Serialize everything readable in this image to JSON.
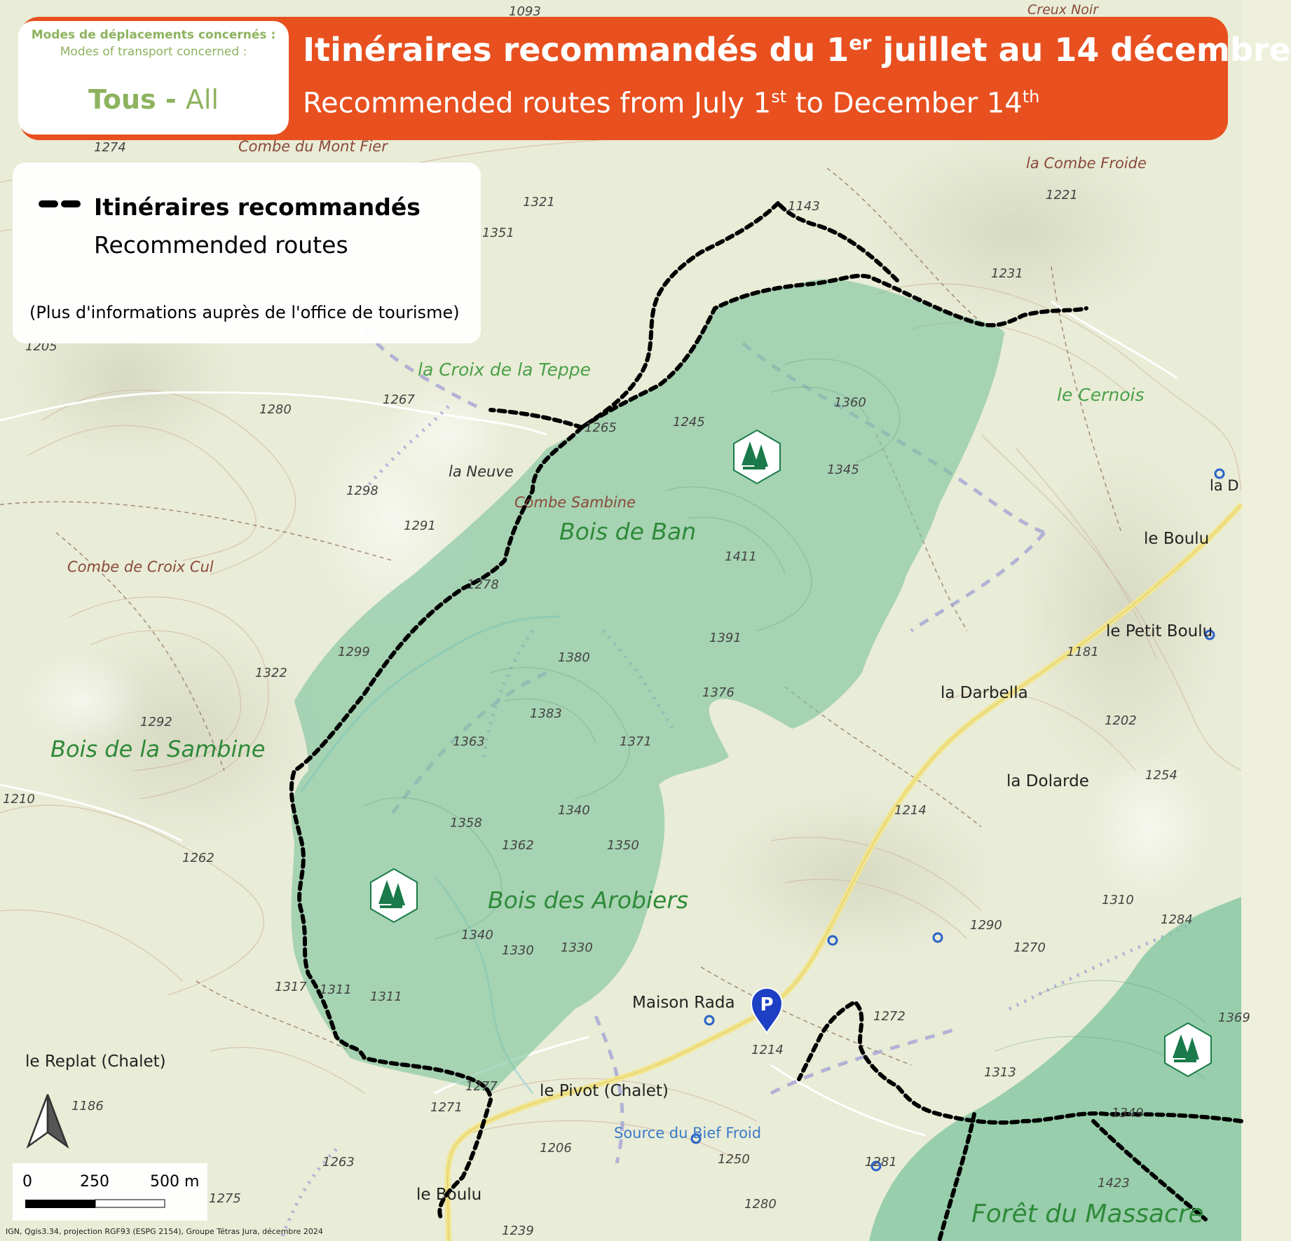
{
  "header": {
    "modes_title": "Modes de déplacements concernés :",
    "modes_subtitle": "Modes of transport concerned :",
    "modes_value_fr": "Tous",
    "modes_sep": " - ",
    "modes_value_en": "All",
    "title_fr_pre": "Itinéraires recommandés du 1",
    "title_fr_sup": "er",
    "title_fr_post": " juillet au 14 décembre",
    "title_en_pre": "Recommended routes from July 1",
    "title_en_sup": "st",
    "title_en_mid": " to December 14",
    "title_en_sup2": "th",
    "banner_color": "#e8501f",
    "accent_green": "#8db35e"
  },
  "legend": {
    "route_fr": "Itinéraires recommandés",
    "route_en": "Recommended routes",
    "info": "(Plus d'informations auprès de l'office de tourisme)"
  },
  "scale": {
    "labels": [
      "0",
      "250",
      "500 m"
    ]
  },
  "credits": "IGN, Qgis3.34, projection RGF93 (ESPG 2154), Groupe Tétras Jura, décembre 2024",
  "map": {
    "zone_color": "#7cc49c",
    "route_color": "#000000",
    "places": {
      "la_croix_de_la_teppe": "la Croix de la Teppe",
      "le_cernois": "le Cernois",
      "la_neuve": "la Neuve",
      "combe_sambine": "Combe Sambine",
      "bois_de_ban": "Bois de Ban",
      "le_boulu_ne": "le Boulu",
      "le_petit_boulu": "le Petit Boulu",
      "la_darbella": "la Darbella",
      "la_dolarde": "la Dolarde",
      "bois_de_la_sambine": "Bois de la Sambine",
      "combe_de_croix_cul": "Combe de Croix Cul",
      "combe_du_mont_fier": "Combe du Mont Fier",
      "la_combe_froide": "la Combe Froide",
      "bois_des_arobiers": "Bois des Arobiers",
      "maison_rada": "Maison Rada",
      "le_replat": "le Replat (Chalet)",
      "le_pivot": "le Pivot (Chalet)",
      "source_du_bief_froid": "Source du Bief Froid",
      "le_boulu_s": "le Boulu",
      "foret_du_massacre": "Forêt du Massacre",
      "creux_noir": "Creux Noir",
      "la_d": "la D"
    },
    "elevations": {
      "e1274": "1274",
      "e1321": "1321",
      "e1351": "1351",
      "e1143": "1143",
      "e1221": "1221",
      "e1231": "1231",
      "e1205": "1205",
      "e1280": "1280",
      "e1267": "1267",
      "e1265": "1265",
      "e1245": "1245",
      "e1360": "1360",
      "e1345": "1345",
      "e1298": "1298",
      "e1291": "1291",
      "e1411": "1411",
      "e1278": "1278",
      "e1391": "1391",
      "e1299": "1299",
      "e1380": "1380",
      "e1322": "1322",
      "e1376": "1376",
      "e1181": "1181",
      "e1292": "1292",
      "e1383": "1383",
      "e1363": "1363",
      "e1371": "1371",
      "e1202": "1202",
      "e1210": "1210",
      "e1254": "1254",
      "e1340a": "1340",
      "e1214a": "1214",
      "e1358": "1358",
      "e1362": "1362",
      "e1350": "1350",
      "e1262": "1262",
      "e1310": "1310",
      "e1290": "1290",
      "e1284": "1284",
      "e1340b": "1340",
      "e1330a": "1330",
      "e1330b": "1330",
      "e1270": "1270",
      "e1317": "1317",
      "e1311a": "1311",
      "e1311b": "1311",
      "e1272": "1272",
      "e1214b": "1214",
      "e1313": "1313",
      "e1186": "1186",
      "e1271": "1271",
      "e1277": "1277",
      "e1349": "1349",
      "e1206": "1206",
      "e1250": "1250",
      "e1263": "1263",
      "e1281": "1281",
      "e1423": "1423",
      "e1275": "1275",
      "e1280b": "1280",
      "e1239": "1239",
      "e1093": "1093",
      "e1369": "1369"
    },
    "icons": {
      "forest_1": "forest-icon",
      "forest_2": "forest-icon",
      "forest_3": "forest-icon",
      "parking": "parking-icon",
      "north_arrow": "north-arrow-icon"
    }
  }
}
